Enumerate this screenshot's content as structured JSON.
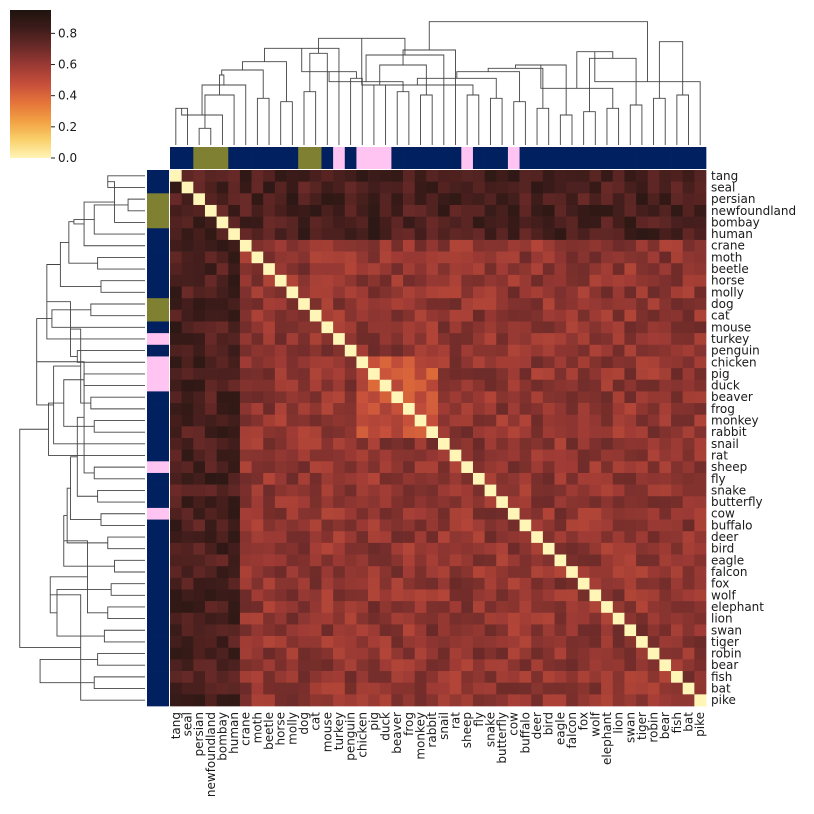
{
  "chart_data": {
    "type": "heatmap",
    "title": "",
    "labels": [
      "tang",
      "seal",
      "persian",
      "newfoundland",
      "bombay",
      "human",
      "crane",
      "moth",
      "beetle",
      "horse",
      "molly",
      "dog",
      "cat",
      "mouse",
      "turkey",
      "penguin",
      "chicken",
      "pig",
      "duck",
      "beaver",
      "frog",
      "monkey",
      "rabbit",
      "snail",
      "rat",
      "sheep",
      "fly",
      "snake",
      "butterfly",
      "cow",
      "buffalo",
      "deer",
      "bird",
      "eagle",
      "falcon",
      "fox",
      "wolf",
      "elephant",
      "lion",
      "swan",
      "tiger",
      "robin",
      "bear",
      "fish",
      "bat",
      "pike"
    ],
    "group_colors": [
      "#00205f",
      "#00205f",
      "#808033",
      "#808033",
      "#808033",
      "#00205f",
      "#00205f",
      "#00205f",
      "#00205f",
      "#00205f",
      "#00205f",
      "#808033",
      "#808033",
      "#00205f",
      "#ffc4f2",
      "#00205f",
      "#ffc4f2",
      "#ffc4f2",
      "#ffc4f2",
      "#00205f",
      "#00205f",
      "#00205f",
      "#00205f",
      "#00205f",
      "#00205f",
      "#ffc4f2",
      "#00205f",
      "#00205f",
      "#00205f",
      "#ffc4f2",
      "#00205f",
      "#00205f",
      "#00205f",
      "#00205f",
      "#00205f",
      "#00205f",
      "#00205f",
      "#00205f",
      "#00205f",
      "#00205f",
      "#00205f",
      "#00205f",
      "#00205f",
      "#00205f",
      "#00205f",
      "#00205f"
    ],
    "colorbar": {
      "min": 0.0,
      "max": 0.95,
      "ticks": [
        "0.0",
        "0.2",
        "0.4",
        "0.6",
        "0.8"
      ],
      "tick_values": [
        0.0,
        0.2,
        0.4,
        0.6,
        0.8
      ]
    },
    "colormap": [
      "#fff5b7",
      "#f9d06a",
      "#f2a043",
      "#e4743a",
      "#c64f3b",
      "#9c3a34",
      "#6a2a28",
      "#3d1c1a",
      "#1f140f"
    ],
    "diagonal_value": 0.0,
    "dendrogram": [
      [
        0,
        1,
        0.22
      ],
      [
        2,
        3,
        0.1
      ],
      [
        46,
        4,
        0.18
      ],
      [
        47,
        5,
        0.3
      ],
      [
        48,
        6,
        0.36
      ],
      [
        7,
        8,
        0.28
      ],
      [
        49,
        50,
        0.42
      ],
      [
        9,
        10,
        0.26
      ],
      [
        51,
        52,
        0.45
      ],
      [
        11,
        12,
        0.32
      ],
      [
        53,
        54,
        0.5
      ],
      [
        55,
        13,
        0.55
      ],
      [
        56,
        14,
        0.58
      ],
      [
        15,
        16,
        0.4
      ],
      [
        17,
        18,
        0.36
      ],
      [
        58,
        59,
        0.44
      ],
      [
        19,
        20,
        0.32
      ],
      [
        21,
        22,
        0.3
      ],
      [
        61,
        62,
        0.38
      ],
      [
        60,
        63,
        0.48
      ],
      [
        64,
        23,
        0.54
      ],
      [
        65,
        24,
        0.57
      ],
      [
        57,
        66,
        0.64
      ],
      [
        25,
        26,
        0.3
      ],
      [
        27,
        28,
        0.28
      ],
      [
        68,
        69,
        0.36
      ],
      [
        29,
        30,
        0.26
      ],
      [
        70,
        71,
        0.4
      ],
      [
        31,
        32,
        0.22
      ],
      [
        72,
        73,
        0.44
      ],
      [
        33,
        34,
        0.18
      ],
      [
        74,
        75,
        0.46
      ],
      [
        35,
        36,
        0.2
      ],
      [
        76,
        77,
        0.48
      ],
      [
        37,
        38,
        0.22
      ],
      [
        39,
        40,
        0.24
      ],
      [
        79,
        80,
        0.34
      ],
      [
        78,
        81,
        0.52
      ],
      [
        41,
        42,
        0.28
      ],
      [
        82,
        83,
        0.56
      ],
      [
        43,
        44,
        0.3
      ],
      [
        85,
        45,
        0.38
      ],
      [
        84,
        86,
        0.62
      ],
      [
        67,
        87,
        0.74
      ],
      [
        88,
        1,
        0.0
      ]
    ]
  }
}
